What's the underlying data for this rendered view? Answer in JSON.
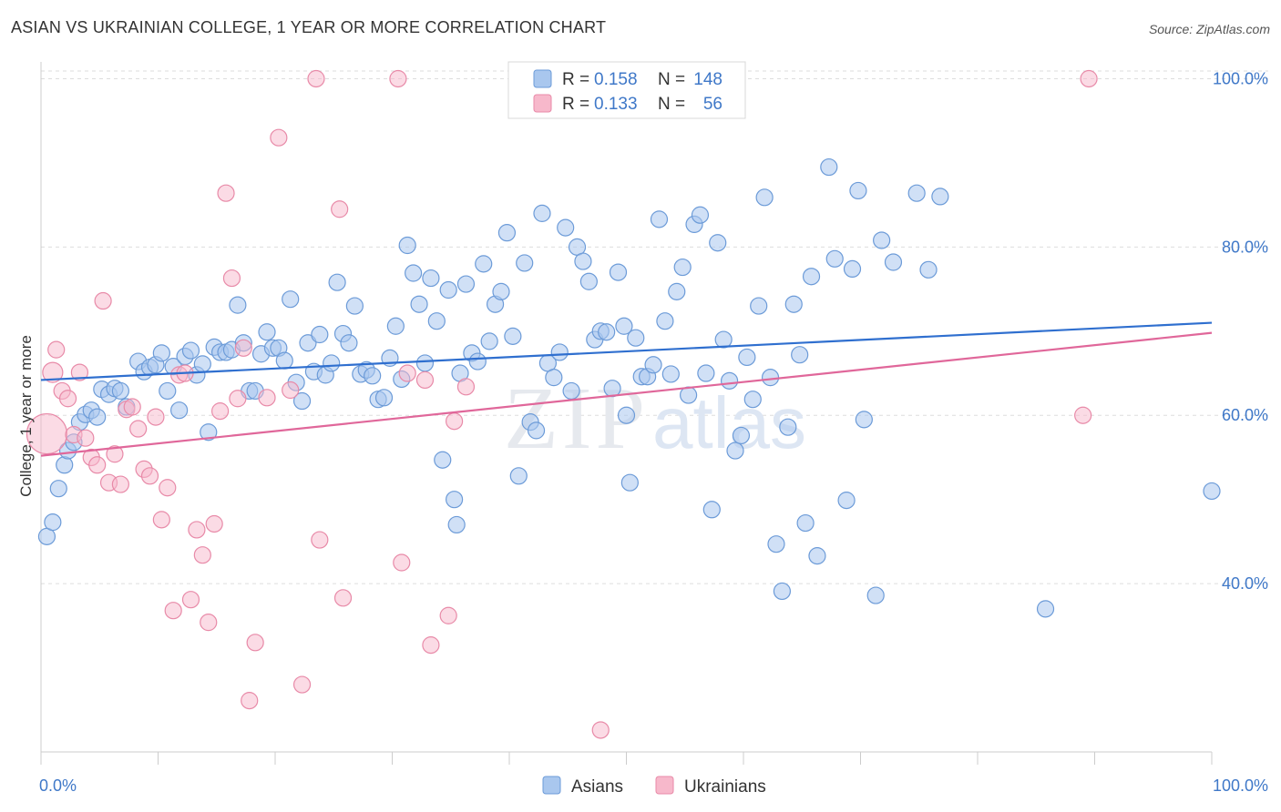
{
  "title": "ASIAN VS UKRAINIAN COLLEGE, 1 YEAR OR MORE CORRELATION CHART",
  "source": "Source: ZipAtlas.com",
  "watermark": {
    "zip": "ZIP",
    "atlas": "atlas"
  },
  "legend_top": [
    {
      "r_label": "R =",
      "r_value": "0.158",
      "n_label": "N =",
      "n_value": "148",
      "color": "#a9c7ee",
      "stroke": "#6c9bd8"
    },
    {
      "r_label": "R =",
      "r_value": "0.133",
      "n_label": "N =",
      "n_value": "56",
      "color": "#f7b8cb",
      "stroke": "#e88aa8"
    }
  ],
  "legend_bottom": [
    {
      "label": "Asians",
      "color": "#a9c7ee",
      "stroke": "#6c9bd8"
    },
    {
      "label": "Ukrainians",
      "color": "#f7b8cb",
      "stroke": "#e88aa8"
    }
  ],
  "chart_data": {
    "type": "scatter",
    "title": "ASIAN VS UKRAINIAN COLLEGE, 1 YEAR OR MORE CORRELATION CHART",
    "xlabel": "",
    "ylabel": "College, 1 year or more",
    "xlim": [
      0,
      100
    ],
    "ylim": [
      20,
      102
    ],
    "x_tick_labels": [
      {
        "value": 0,
        "label": "0.0%"
      },
      {
        "value": 100,
        "label": "100.0%"
      }
    ],
    "y_tick_labels": [
      {
        "value": 100,
        "label": "100.0%"
      },
      {
        "value": 80,
        "label": "80.0%"
      },
      {
        "value": 60,
        "label": "60.0%"
      },
      {
        "value": 40,
        "label": "40.0%"
      }
    ],
    "grid": true,
    "series": [
      {
        "name": "Asians",
        "color": "#a9c7ee",
        "stroke": "#6c9bd8",
        "line_color": "#2f6fcf",
        "trend": [
          [
            0,
            64.2
          ],
          [
            100,
            71.0
          ]
        ],
        "points": [
          [
            0.5,
            45.6
          ],
          [
            1,
            47.3
          ],
          [
            1.5,
            51.3
          ],
          [
            2,
            54.1
          ],
          [
            2.3,
            55.8
          ],
          [
            2.8,
            56.8
          ],
          [
            3.3,
            59.2
          ],
          [
            3.8,
            60.1
          ],
          [
            4.3,
            60.6
          ],
          [
            4.8,
            59.8
          ],
          [
            5.2,
            63.1
          ],
          [
            5.8,
            62.5
          ],
          [
            6.3,
            63.2
          ],
          [
            6.8,
            62.9
          ],
          [
            7.3,
            61.0
          ],
          [
            8.3,
            66.4
          ],
          [
            8.8,
            65.2
          ],
          [
            9.3,
            65.7
          ],
          [
            9.8,
            66.0
          ],
          [
            10.3,
            67.4
          ],
          [
            10.8,
            62.9
          ],
          [
            11.3,
            65.8
          ],
          [
            11.8,
            60.6
          ],
          [
            12.3,
            67.0
          ],
          [
            12.8,
            67.7
          ],
          [
            13.3,
            64.8
          ],
          [
            13.8,
            66.1
          ],
          [
            14.3,
            58.0
          ],
          [
            14.8,
            68.1
          ],
          [
            15.3,
            67.5
          ],
          [
            15.8,
            67.5
          ],
          [
            16.3,
            67.8
          ],
          [
            16.8,
            73.1
          ],
          [
            17.3,
            68.6
          ],
          [
            17.8,
            62.9
          ],
          [
            18.3,
            62.9
          ],
          [
            18.8,
            67.3
          ],
          [
            19.3,
            69.9
          ],
          [
            19.8,
            68.0
          ],
          [
            20.3,
            68.0
          ],
          [
            20.8,
            66.5
          ],
          [
            21.3,
            73.8
          ],
          [
            21.8,
            63.9
          ],
          [
            22.3,
            61.7
          ],
          [
            22.8,
            68.6
          ],
          [
            23.3,
            65.2
          ],
          [
            23.8,
            69.6
          ],
          [
            24.3,
            64.8
          ],
          [
            24.8,
            66.2
          ],
          [
            25.3,
            75.8
          ],
          [
            25.8,
            69.7
          ],
          [
            26.3,
            68.6
          ],
          [
            26.8,
            73.0
          ],
          [
            27.3,
            64.9
          ],
          [
            27.8,
            65.4
          ],
          [
            28.3,
            64.7
          ],
          [
            28.8,
            61.9
          ],
          [
            29.3,
            62.1
          ],
          [
            29.8,
            66.8
          ],
          [
            30.3,
            70.6
          ],
          [
            30.8,
            64.3
          ],
          [
            31.3,
            80.2
          ],
          [
            31.8,
            76.9
          ],
          [
            32.3,
            73.2
          ],
          [
            32.8,
            66.2
          ],
          [
            33.3,
            76.3
          ],
          [
            33.8,
            71.2
          ],
          [
            34.3,
            54.7
          ],
          [
            34.8,
            74.9
          ],
          [
            35.3,
            50.0
          ],
          [
            35.8,
            65.0
          ],
          [
            36.3,
            75.6
          ],
          [
            36.8,
            67.4
          ],
          [
            37.3,
            66.4
          ],
          [
            37.8,
            78.0
          ],
          [
            38.3,
            68.8
          ],
          [
            38.8,
            73.2
          ],
          [
            39.3,
            74.7
          ],
          [
            39.8,
            81.7
          ],
          [
            40.3,
            69.4
          ],
          [
            40.8,
            52.8
          ],
          [
            41.3,
            78.1
          ],
          [
            41.8,
            59.2
          ],
          [
            42.3,
            58.2
          ],
          [
            42.8,
            84.0
          ],
          [
            43.3,
            66.2
          ],
          [
            43.8,
            64.5
          ],
          [
            44.3,
            67.5
          ],
          [
            44.8,
            82.3
          ],
          [
            45.3,
            62.9
          ],
          [
            45.8,
            80.0
          ],
          [
            46.3,
            78.3
          ],
          [
            46.8,
            75.9
          ],
          [
            47.3,
            69.0
          ],
          [
            47.8,
            70.0
          ],
          [
            48.3,
            69.9
          ],
          [
            48.8,
            63.2
          ],
          [
            49.3,
            77.0
          ],
          [
            49.8,
            70.6
          ],
          [
            50.3,
            52.0
          ],
          [
            50.8,
            69.2
          ],
          [
            51.3,
            64.6
          ],
          [
            51.8,
            64.6
          ],
          [
            52.3,
            66.0
          ],
          [
            52.8,
            83.3
          ],
          [
            53.3,
            71.2
          ],
          [
            53.8,
            64.9
          ],
          [
            54.3,
            74.7
          ],
          [
            54.8,
            77.6
          ],
          [
            55.3,
            62.4
          ],
          [
            55.8,
            82.7
          ],
          [
            56.3,
            83.8
          ],
          [
            56.8,
            65.0
          ],
          [
            57.3,
            48.8
          ],
          [
            57.8,
            80.5
          ],
          [
            58.3,
            69.0
          ],
          [
            58.8,
            64.1
          ],
          [
            59.3,
            55.8
          ],
          [
            59.8,
            57.6
          ],
          [
            60.3,
            66.9
          ],
          [
            60.8,
            61.9
          ],
          [
            61.3,
            73.0
          ],
          [
            61.8,
            85.9
          ],
          [
            62.3,
            64.5
          ],
          [
            62.8,
            44.7
          ],
          [
            63.3,
            39.1
          ],
          [
            63.8,
            58.6
          ],
          [
            64.3,
            73.2
          ],
          [
            64.8,
            67.2
          ],
          [
            65.3,
            47.2
          ],
          [
            65.8,
            76.5
          ],
          [
            66.3,
            43.3
          ],
          [
            67.3,
            89.5
          ],
          [
            67.8,
            78.6
          ],
          [
            68.8,
            49.9
          ],
          [
            69.3,
            77.4
          ],
          [
            69.8,
            86.7
          ],
          [
            70.3,
            59.5
          ],
          [
            71.3,
            38.6
          ],
          [
            71.8,
            80.8
          ],
          [
            72.8,
            78.2
          ],
          [
            74.8,
            86.4
          ],
          [
            75.8,
            77.3
          ],
          [
            76.8,
            86.0
          ],
          [
            85.8,
            37.0
          ],
          [
            100,
            51.0
          ],
          [
            50.0,
            60.0
          ],
          [
            35.5,
            47.0
          ]
        ]
      },
      {
        "name": "Ukrainians",
        "color": "#f7b8cb",
        "stroke": "#e88aa8",
        "line_color": "#e0679a",
        "trend": [
          [
            0,
            55.2
          ],
          [
            100,
            69.8
          ]
        ],
        "points": [
          [
            0.5,
            57.8
          ],
          [
            1,
            65.1
          ],
          [
            1.3,
            67.8
          ],
          [
            1.8,
            62.9
          ],
          [
            2.3,
            62.0
          ],
          [
            2.8,
            57.7
          ],
          [
            3.3,
            65.1
          ],
          [
            3.8,
            57.3
          ],
          [
            4.3,
            55.0
          ],
          [
            4.8,
            54.1
          ],
          [
            5.3,
            73.6
          ],
          [
            5.8,
            52.0
          ],
          [
            6.3,
            55.4
          ],
          [
            6.8,
            51.8
          ],
          [
            7.3,
            60.7
          ],
          [
            7.8,
            61.0
          ],
          [
            8.3,
            58.4
          ],
          [
            8.8,
            53.6
          ],
          [
            9.3,
            52.8
          ],
          [
            9.8,
            59.8
          ],
          [
            10.3,
            47.6
          ],
          [
            10.8,
            51.4
          ],
          [
            11.3,
            36.8
          ],
          [
            11.8,
            64.8
          ],
          [
            12.3,
            65.0
          ],
          [
            12.8,
            38.1
          ],
          [
            13.3,
            46.4
          ],
          [
            13.8,
            43.4
          ],
          [
            14.3,
            35.4
          ],
          [
            14.8,
            47.1
          ],
          [
            15.3,
            60.5
          ],
          [
            15.8,
            86.4
          ],
          [
            16.3,
            76.3
          ],
          [
            16.8,
            62.0
          ],
          [
            17.3,
            68.0
          ],
          [
            17.8,
            26.1
          ],
          [
            18.3,
            33.0
          ],
          [
            19.3,
            62.1
          ],
          [
            20.3,
            93.0
          ],
          [
            21.3,
            63.0
          ],
          [
            22.3,
            28.0
          ],
          [
            23.5,
            100.0
          ],
          [
            23.8,
            45.2
          ],
          [
            25.5,
            84.5
          ],
          [
            25.8,
            38.3
          ],
          [
            30.5,
            100.0
          ],
          [
            30.8,
            42.5
          ],
          [
            31.3,
            65.0
          ],
          [
            32.8,
            64.2
          ],
          [
            33.3,
            32.7
          ],
          [
            34.8,
            36.2
          ],
          [
            35.3,
            59.3
          ],
          [
            36.3,
            63.4
          ],
          [
            47.8,
            22.6
          ],
          [
            89.0,
            60.0
          ],
          [
            89.5,
            100.0
          ]
        ]
      }
    ]
  }
}
